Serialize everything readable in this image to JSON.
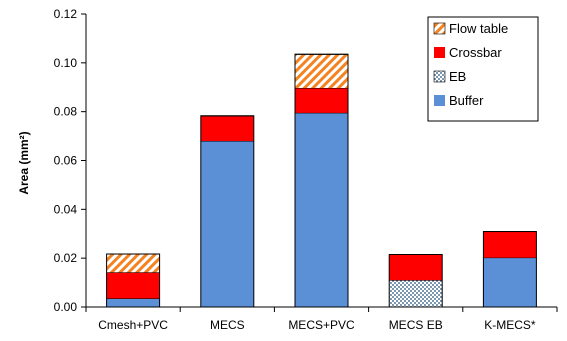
{
  "chart_data": {
    "type": "bar",
    "stacked": true,
    "categories": [
      "Cmesh+PVC",
      "MECS",
      "MECS+PVC",
      "MECS EB",
      "K-MECS*"
    ],
    "series": [
      {
        "name": "Buffer",
        "color": "#5B8FD6",
        "pattern": "solid",
        "values": [
          0.0035,
          0.068,
          0.0795,
          0,
          0.0202
        ]
      },
      {
        "name": "EB",
        "color": "#1F4E79",
        "pattern": "dots",
        "values": [
          0,
          0,
          0,
          0.011,
          0
        ]
      },
      {
        "name": "Crossbar",
        "color": "#FF0000",
        "pattern": "solid",
        "values": [
          0.0107,
          0.0103,
          0.0102,
          0.0105,
          0.0107
        ]
      },
      {
        "name": "Flow table",
        "color": "#F58220",
        "pattern": "diagonal-stripes",
        "values": [
          0.0075,
          0,
          0.0138,
          0,
          0
        ]
      }
    ],
    "ylabel": "Area (mm²)",
    "xlabel": "",
    "title": "",
    "ylim": [
      0,
      0.12
    ],
    "yticks": [
      "0.00",
      "0.02",
      "0.04",
      "0.06",
      "0.08",
      "0.10",
      "0.12"
    ],
    "grid": false,
    "legend_position": "top-right",
    "legend_order": [
      "Flow table",
      "Crossbar",
      "EB",
      "Buffer"
    ]
  }
}
